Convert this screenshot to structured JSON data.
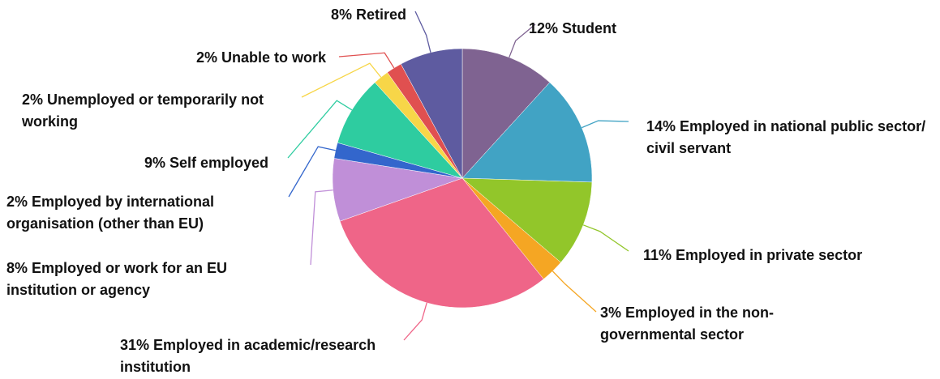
{
  "chart_data": {
    "type": "pie",
    "categories": [
      "Student",
      "Employed in national public sector/ civil servant",
      "Employed in private sector",
      "Employed in the non-governmental sector",
      "Employed in academic/research institution",
      "Employed or work for an EU institution or agency",
      "Employed by international organisation (other than EU)",
      "Self employed",
      "Unemployed or temporarily not working",
      "Unable to work",
      "Retired"
    ],
    "values": [
      12,
      14,
      11,
      3,
      31,
      8,
      2,
      9,
      2,
      2,
      8
    ],
    "value_labels": [
      "12%",
      "14%",
      "11%",
      "3%",
      "31%",
      "8%",
      "2%",
      "9%",
      "2%",
      "2%",
      "8%"
    ],
    "colors": [
      "#7f6391",
      "#41a3c4",
      "#92c62a",
      "#f5a623",
      "#ef6588",
      "#c08fd8",
      "#3366cc",
      "#2ecca0",
      "#f7d648",
      "#e05050",
      "#5e5ba0"
    ]
  }
}
